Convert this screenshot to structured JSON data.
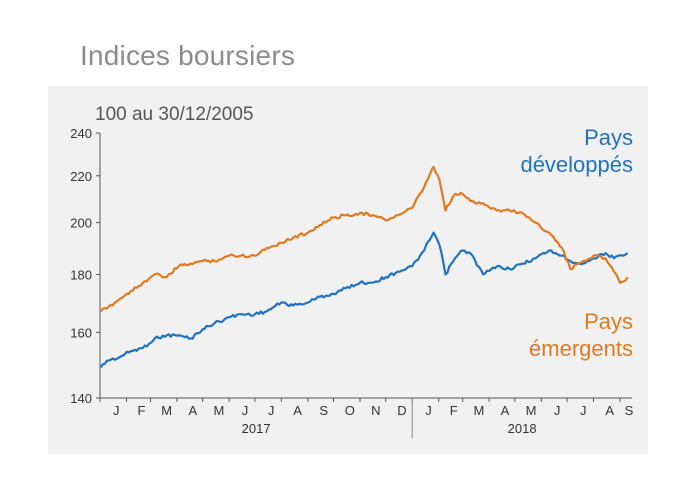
{
  "page": {
    "title": "Indices boursiers"
  },
  "chart_data": {
    "type": "line",
    "title": "Indices boursiers",
    "unit_label": "100 au 30/12/2005",
    "ylim": [
      140,
      240
    ],
    "ytick_values": [
      140,
      160,
      180,
      200,
      220,
      240
    ],
    "ytick_labels": [
      "140",
      "160",
      "180",
      "200",
      "220",
      "240"
    ],
    "y_scale": "log",
    "x_range": [
      "2017-01-01",
      "2018-09-15"
    ],
    "month_ticks": [
      "J",
      "F",
      "M",
      "A",
      "M",
      "J",
      "J",
      "A",
      "S",
      "O",
      "N",
      "D",
      "J",
      "F",
      "M",
      "A",
      "M",
      "J",
      "J",
      "A",
      "S"
    ],
    "years": [
      {
        "label": "2017",
        "start": "2017-01-01",
        "end": "2018-01-01"
      },
      {
        "label": "2018",
        "start": "2018-01-01",
        "end": "2018-09-15"
      }
    ],
    "grid": false,
    "series": [
      {
        "name": "Pays développés",
        "label_lines": [
          "Pays",
          "développés"
        ],
        "color": "#1f73c2",
        "points": [
          [
            "2017-01-02",
            149
          ],
          [
            "2017-01-09",
            151
          ],
          [
            "2017-01-23",
            152
          ],
          [
            "2017-02-06",
            154
          ],
          [
            "2017-02-20",
            155
          ],
          [
            "2017-03-06",
            158
          ],
          [
            "2017-03-20",
            159
          ],
          [
            "2017-04-03",
            159
          ],
          [
            "2017-04-17",
            158
          ],
          [
            "2017-05-01",
            161
          ],
          [
            "2017-05-15",
            163
          ],
          [
            "2017-06-01",
            165
          ],
          [
            "2017-06-15",
            166
          ],
          [
            "2017-07-01",
            166
          ],
          [
            "2017-07-15",
            167
          ],
          [
            "2017-08-01",
            170
          ],
          [
            "2017-08-15",
            169
          ],
          [
            "2017-09-01",
            170
          ],
          [
            "2017-09-15",
            172
          ],
          [
            "2017-10-01",
            173
          ],
          [
            "2017-10-15",
            175
          ],
          [
            "2017-11-01",
            177
          ],
          [
            "2017-11-15",
            177
          ],
          [
            "2017-12-01",
            179
          ],
          [
            "2017-12-15",
            181
          ],
          [
            "2018-01-01",
            183
          ],
          [
            "2018-01-15",
            189
          ],
          [
            "2018-01-26",
            196
          ],
          [
            "2018-02-02",
            191
          ],
          [
            "2018-02-09",
            180
          ],
          [
            "2018-02-20",
            186
          ],
          [
            "2018-03-01",
            189
          ],
          [
            "2018-03-10",
            188
          ],
          [
            "2018-03-25",
            180
          ],
          [
            "2018-04-10",
            183
          ],
          [
            "2018-04-25",
            182
          ],
          [
            "2018-05-10",
            184
          ],
          [
            "2018-05-25",
            186
          ],
          [
            "2018-06-10",
            189
          ],
          [
            "2018-06-25",
            187
          ],
          [
            "2018-07-05",
            185
          ],
          [
            "2018-07-20",
            184
          ],
          [
            "2018-08-01",
            186
          ],
          [
            "2018-08-15",
            188
          ],
          [
            "2018-08-25",
            186
          ],
          [
            "2018-09-05",
            187
          ],
          [
            "2018-09-10",
            188
          ]
        ]
      },
      {
        "name": "Pays émergents",
        "label_lines": [
          "Pays",
          "émergents"
        ],
        "color": "#e07a1f",
        "points": [
          [
            "2017-01-02",
            167
          ],
          [
            "2017-01-09",
            168
          ],
          [
            "2017-01-23",
            171
          ],
          [
            "2017-02-06",
            174
          ],
          [
            "2017-02-20",
            177
          ],
          [
            "2017-03-06",
            180
          ],
          [
            "2017-03-20",
            179
          ],
          [
            "2017-04-03",
            183
          ],
          [
            "2017-04-17",
            184
          ],
          [
            "2017-05-01",
            185
          ],
          [
            "2017-05-15",
            185
          ],
          [
            "2017-06-01",
            187
          ],
          [
            "2017-06-15",
            187
          ],
          [
            "2017-07-01",
            187
          ],
          [
            "2017-07-15",
            190
          ],
          [
            "2017-08-01",
            192
          ],
          [
            "2017-08-15",
            194
          ],
          [
            "2017-09-01",
            196
          ],
          [
            "2017-09-15",
            199
          ],
          [
            "2017-10-01",
            202
          ],
          [
            "2017-10-15",
            203
          ],
          [
            "2017-11-01",
            204
          ],
          [
            "2017-11-15",
            203
          ],
          [
            "2017-12-01",
            201
          ],
          [
            "2017-12-15",
            203
          ],
          [
            "2018-01-01",
            206
          ],
          [
            "2018-01-15",
            215
          ],
          [
            "2018-01-26",
            224
          ],
          [
            "2018-02-02",
            218
          ],
          [
            "2018-02-09",
            205
          ],
          [
            "2018-02-20",
            212
          ],
          [
            "2018-03-01",
            212
          ],
          [
            "2018-03-10",
            209
          ],
          [
            "2018-03-25",
            208
          ],
          [
            "2018-04-10",
            205
          ],
          [
            "2018-04-25",
            205
          ],
          [
            "2018-05-10",
            204
          ],
          [
            "2018-05-25",
            200
          ],
          [
            "2018-06-10",
            196
          ],
          [
            "2018-06-25",
            190
          ],
          [
            "2018-07-05",
            182
          ],
          [
            "2018-07-20",
            185
          ],
          [
            "2018-08-01",
            187
          ],
          [
            "2018-08-15",
            186
          ],
          [
            "2018-08-25",
            181
          ],
          [
            "2018-09-01",
            177
          ],
          [
            "2018-09-10",
            179
          ]
        ]
      }
    ]
  }
}
